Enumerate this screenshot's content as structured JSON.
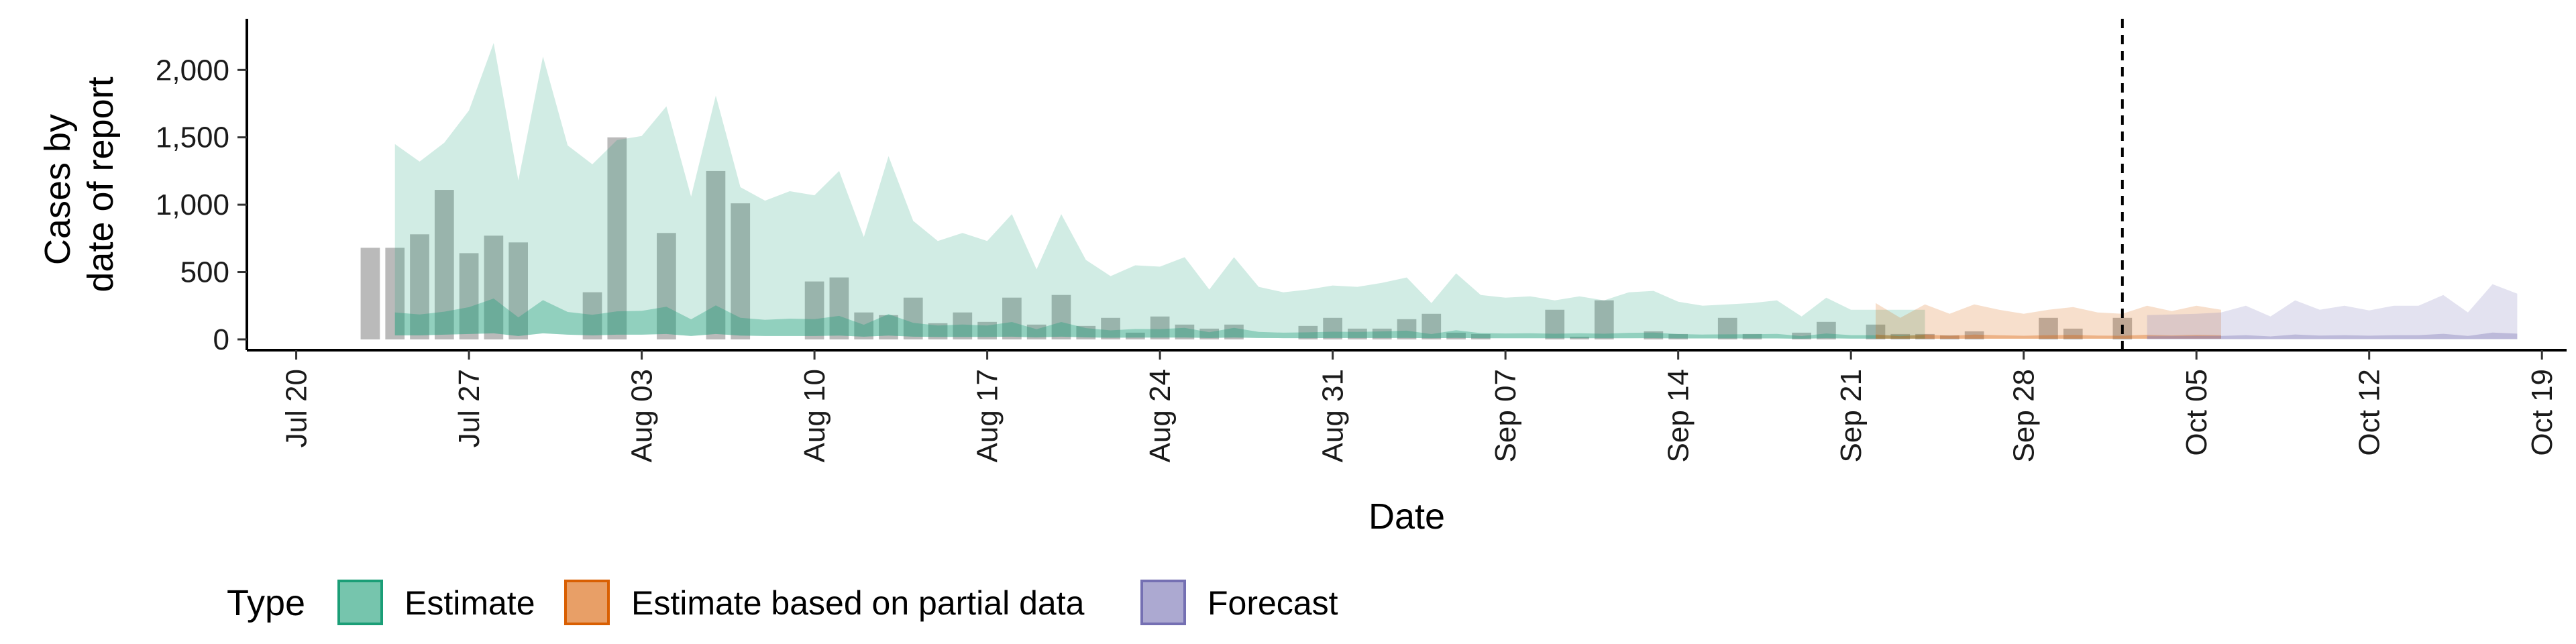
{
  "chart_data": {
    "type": "area",
    "xlabel": "Date",
    "ylabel": [
      "Cases by",
      "date of report"
    ],
    "ylim": [
      -80,
      2380
    ],
    "y_ticks": [
      0,
      500,
      1000,
      1500,
      2000
    ],
    "y_tick_labels": [
      "0",
      "500",
      "1,000",
      "1,500",
      "2,000"
    ],
    "x_range": [
      "2020-07-18",
      "2020-10-20"
    ],
    "x_ticks": [
      "2020-07-20",
      "2020-07-27",
      "2020-08-03",
      "2020-08-10",
      "2020-08-17",
      "2020-08-24",
      "2020-08-31",
      "2020-09-07",
      "2020-09-14",
      "2020-09-21",
      "2020-09-28",
      "2020-10-05",
      "2020-10-12",
      "2020-10-19"
    ],
    "x_tick_labels": [
      "Jul 20",
      "Jul 27",
      "Aug 03",
      "Aug 10",
      "Aug 17",
      "Aug 24",
      "Aug 31",
      "Sep 07",
      "Sep 14",
      "Sep 21",
      "Sep 28",
      "Oct 05",
      "Oct 12",
      "Oct 19"
    ],
    "vline_date": "2020-10-02",
    "grid": false,
    "legend_position": "bottom",
    "legend_title": "Type",
    "colors": {
      "estimate": "#1b9e77",
      "partial": "#d95f02",
      "forecast": "#7570b3",
      "bars": "#8c8c8c"
    },
    "legend": [
      {
        "key": "estimate",
        "label": "Estimate"
      },
      {
        "key": "partial",
        "label": "Estimate based on partial data"
      },
      {
        "key": "forecast",
        "label": "Forecast"
      }
    ],
    "reported_cases": {
      "start_date": "2020-07-23",
      "values": [
        680,
        680,
        780,
        1110,
        640,
        770,
        720,
        0,
        0,
        350,
        1500,
        0,
        790,
        0,
        1250,
        1010,
        0,
        0,
        430,
        460,
        200,
        180,
        310,
        120,
        200,
        130,
        310,
        110,
        330,
        100,
        160,
        50,
        170,
        110,
        80,
        110,
        0,
        0,
        100,
        160,
        80,
        80,
        150,
        190,
        50,
        40,
        0,
        0,
        220,
        20,
        290,
        0,
        60,
        40,
        0,
        160,
        40,
        0,
        50,
        130,
        0,
        110,
        40,
        40,
        30,
        60,
        0,
        0,
        160,
        80,
        0,
        160,
        0
      ]
    },
    "series": [
      {
        "name": "Estimate",
        "key": "estimate",
        "start_date": "2020-07-24",
        "upper": [
          1450,
          1320,
          1460,
          1700,
          2200,
          1180,
          2100,
          1440,
          1300,
          1480,
          1510,
          1730,
          1060,
          1810,
          1130,
          1030,
          1100,
          1070,
          1250,
          760,
          1360,
          880,
          730,
          790,
          730,
          930,
          520,
          930,
          590,
          470,
          550,
          540,
          610,
          370,
          610,
          390,
          350,
          370,
          400,
          390,
          420,
          460,
          270,
          490,
          330,
          310,
          320,
          290,
          320,
          290,
          350,
          360,
          280,
          250,
          260,
          270,
          290,
          170,
          310,
          220,
          220,
          220,
          220
        ],
        "lower": [
          30,
          30,
          35,
          40,
          45,
          25,
          45,
          35,
          30,
          35,
          35,
          40,
          25,
          40,
          28,
          25,
          25,
          25,
          28,
          20,
          28,
          20,
          18,
          18,
          18,
          20,
          15,
          20,
          15,
          12,
          13,
          13,
          14,
          10,
          14,
          10,
          9,
          9,
          10,
          10,
          10,
          11,
          8,
          11,
          8,
          8,
          8,
          8,
          8,
          8,
          8,
          9,
          7,
          7,
          7,
          7,
          7,
          5,
          8,
          6,
          6,
          6,
          6
        ]
      },
      {
        "name": "Estimate based on partial data",
        "key": "partial",
        "start_date": "2020-09-22",
        "upper": [
          270,
          160,
          260,
          190,
          260,
          220,
          190,
          220,
          240,
          200,
          190,
          250,
          210,
          250,
          220
        ],
        "lower": [
          5,
          5,
          5,
          5,
          5,
          5,
          5,
          5,
          5,
          5,
          5,
          5,
          5,
          5,
          5
        ]
      },
      {
        "name": "Forecast",
        "key": "forecast",
        "start_date": "2020-10-03",
        "upper": [
          180,
          185,
          190,
          200,
          250,
          170,
          290,
          220,
          250,
          215,
          250,
          250,
          330,
          200,
          410,
          340
        ],
        "lower": [
          2,
          2,
          2,
          2,
          2,
          2,
          2,
          2,
          2,
          2,
          2,
          2,
          2,
          2,
          2,
          2
        ]
      }
    ]
  }
}
